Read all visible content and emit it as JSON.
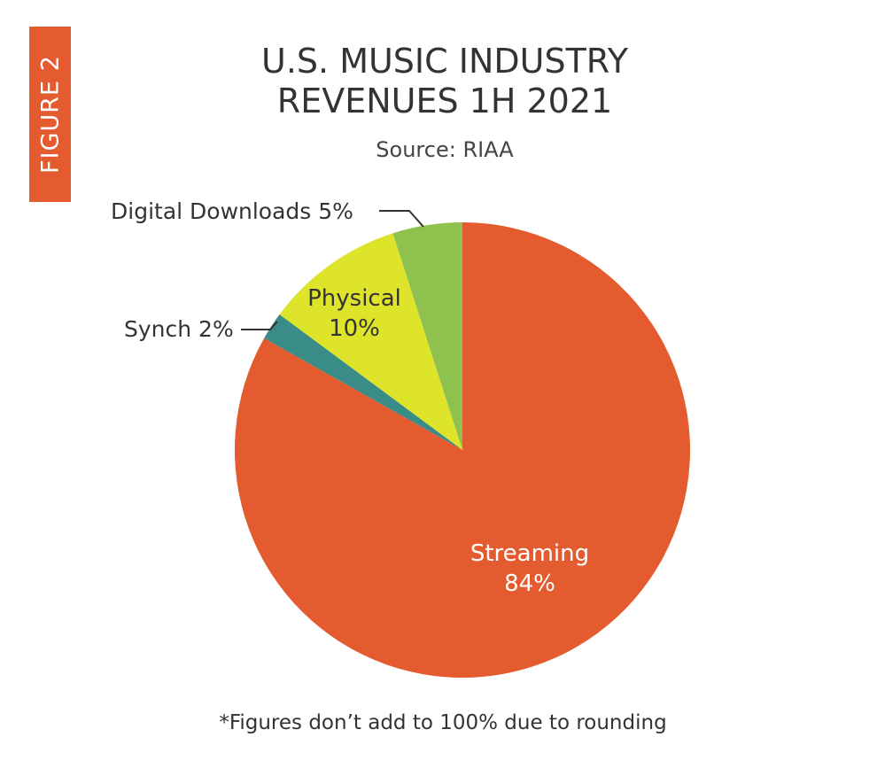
{
  "figure_label": "FIGURE 2",
  "chart_data": {
    "type": "pie",
    "title_lines": [
      "U.S. MUSIC INDUSTRY",
      "REVENUES 1H 2021"
    ],
    "subtitle": "Source: RIAA",
    "slices": [
      {
        "name": "Streaming",
        "value": 84,
        "value_label": "84%",
        "color": "#E35B2E"
      },
      {
        "name": "Synch",
        "value": 2,
        "value_label": "2%",
        "color": "#3A8C87"
      },
      {
        "name": "Physical",
        "value": 10,
        "value_label": "10%",
        "color": "#DDE42A"
      },
      {
        "name": "Digital Downloads",
        "value": 5,
        "value_label": "5%",
        "color": "#8FC14E"
      }
    ],
    "labels": {
      "streaming": "Streaming",
      "streaming_pct": "84%",
      "physical": "Physical",
      "physical_pct": "10%",
      "synch": "Synch 2%",
      "downloads": "Digital Downloads 5%"
    },
    "start_angle": "top",
    "direction": "clockwise",
    "footnote": "*Figures don’t add to 100% due to rounding"
  }
}
